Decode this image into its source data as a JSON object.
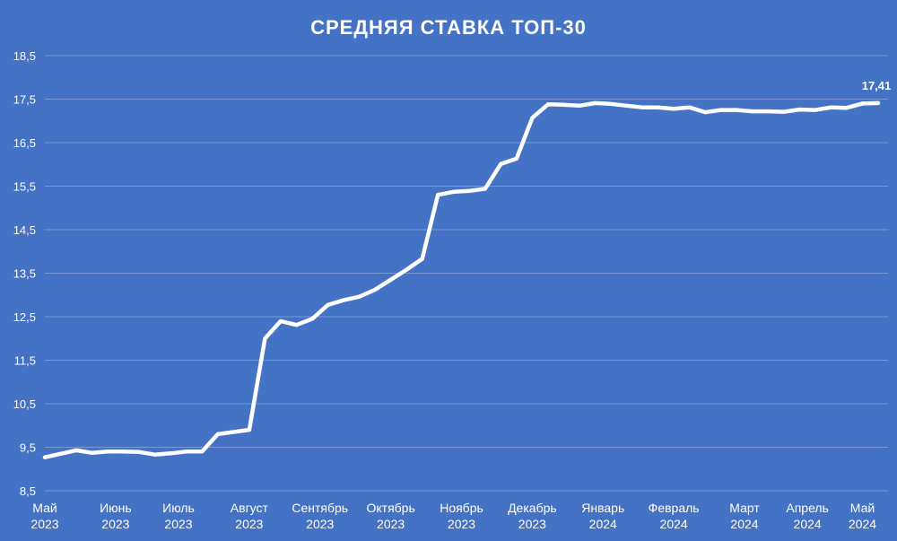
{
  "chart_data": {
    "type": "line",
    "title": "СРЕДНЯЯ СТАВКА ТОП-30",
    "xlabel": "",
    "ylabel": "",
    "ylim": [
      8.5,
      18.5
    ],
    "y_ticks": [
      "8,5",
      "9,5",
      "10,5",
      "11,5",
      "12,5",
      "13,5",
      "14,5",
      "15,5",
      "16,5",
      "17,5",
      "18,5"
    ],
    "grid": true,
    "x_tick_labels": [
      {
        "index": 0,
        "lines": [
          "Май",
          "2023"
        ]
      },
      {
        "index": 4.5,
        "lines": [
          "Июнь",
          "2023"
        ]
      },
      {
        "index": 8.5,
        "lines": [
          "Июль",
          "2023"
        ]
      },
      {
        "index": 13,
        "lines": [
          "Август",
          "2023"
        ]
      },
      {
        "index": 17.5,
        "lines": [
          "Сентябрь",
          "2023"
        ]
      },
      {
        "index": 22,
        "lines": [
          "Октябрь",
          "2023"
        ]
      },
      {
        "index": 26.5,
        "lines": [
          "Ноябрь",
          "2023"
        ]
      },
      {
        "index": 31,
        "lines": [
          "Декабрь",
          "2023"
        ]
      },
      {
        "index": 35.5,
        "lines": [
          "Январь",
          "2024"
        ]
      },
      {
        "index": 40,
        "lines": [
          "Февраль",
          "2024"
        ]
      },
      {
        "index": 44.5,
        "lines": [
          "Март",
          "2024"
        ]
      },
      {
        "index": 48.5,
        "lines": [
          "Апрель",
          "2024"
        ]
      },
      {
        "index": 52,
        "lines": [
          "Май",
          "2024"
        ]
      }
    ],
    "series": [
      {
        "color": "#ffffff",
        "values": [
          9.27,
          9.35,
          9.43,
          9.37,
          9.4,
          9.4,
          9.39,
          9.33,
          9.36,
          9.4,
          9.4,
          9.8,
          9.85,
          9.9,
          12.0,
          12.4,
          12.31,
          12.45,
          12.77,
          12.88,
          12.96,
          13.12,
          13.35,
          13.58,
          13.83,
          15.3,
          15.37,
          15.39,
          15.44,
          16.01,
          16.13,
          17.07,
          17.38,
          17.37,
          17.35,
          17.41,
          17.39,
          17.35,
          17.31,
          17.31,
          17.28,
          17.31,
          17.2,
          17.25,
          17.25,
          17.22,
          17.22,
          17.21,
          17.26,
          17.25,
          17.31,
          17.3,
          17.4,
          17.41
        ]
      }
    ],
    "data_labels": [
      {
        "index": 53,
        "text": "17,41"
      }
    ]
  }
}
